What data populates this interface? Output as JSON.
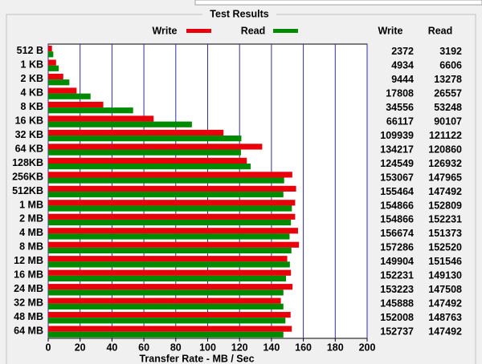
{
  "chart_data": {
    "type": "bar",
    "orientation": "horizontal",
    "title": "Test Results",
    "x_label": "Transfer Rate - MB / Sec",
    "categories": [
      "512 B",
      "1 KB",
      "2 KB",
      "4 KB",
      "8 KB",
      "16 KB",
      "32 KB",
      "64 KB",
      "128KB",
      "256KB",
      "512KB",
      "1 MB",
      "2 MB",
      "4 MB",
      "8 MB",
      "12 MB",
      "16 MB",
      "24 MB",
      "32 MB",
      "48 MB",
      "64 MB"
    ],
    "series": [
      {
        "name": "Write",
        "color": "#e8000b",
        "values": [
          2.372,
          4.934,
          9.444,
          17.808,
          34.556,
          66.117,
          109.939,
          134.217,
          124.549,
          153.067,
          155.464,
          154.866,
          154.866,
          156.674,
          157.286,
          149.904,
          152.231,
          153.223,
          145.888,
          152.008,
          152.737
        ],
        "value_labels": [
          "2372",
          "4934",
          "9444",
          "17808",
          "34556",
          "66117",
          "109939",
          "134217",
          "124549",
          "153067",
          "155464",
          "154866",
          "154866",
          "156674",
          "157286",
          "149904",
          "152231",
          "153223",
          "145888",
          "152008",
          "152737"
        ]
      },
      {
        "name": "Read",
        "color": "#008a00",
        "values": [
          3.192,
          6.606,
          13.278,
          26.557,
          53.248,
          90.107,
          121.122,
          120.86,
          126.932,
          147.965,
          147.492,
          152.809,
          152.231,
          151.373,
          152.52,
          151.546,
          149.13,
          147.508,
          147.492,
          148.763,
          147.492
        ],
        "value_labels": [
          "3192",
          "6606",
          "13278",
          "26557",
          "53248",
          "90107",
          "121122",
          "120860",
          "126932",
          "147965",
          "147492",
          "152809",
          "152231",
          "151373",
          "152520",
          "151546",
          "149130",
          "147508",
          "147492",
          "148763",
          "147492"
        ]
      }
    ],
    "table_headers": [
      "Write",
      "Read"
    ],
    "xlim": [
      0,
      200
    ],
    "xticks": [
      0,
      20,
      40,
      60,
      80,
      100,
      120,
      140,
      160,
      180,
      200
    ],
    "grid": true,
    "grid_color": "#3030a0"
  }
}
